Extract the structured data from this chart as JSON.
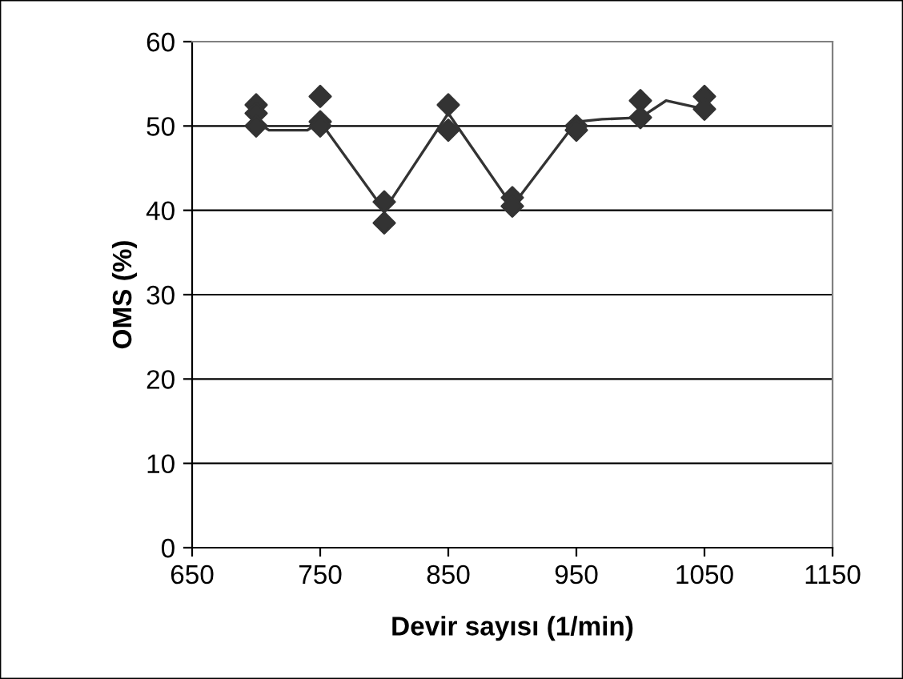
{
  "chart_data": {
    "type": "scatter",
    "xlabel": "Devir sayısı (1/min)",
    "ylabel": "OMS (%)",
    "xlim": [
      650,
      1150
    ],
    "xticks": [
      650,
      750,
      850,
      950,
      1050,
      1150
    ],
    "ylim": [
      0,
      60
    ],
    "yticks": [
      0,
      10,
      20,
      30,
      40,
      50,
      60
    ],
    "grid": "y",
    "legend": false,
    "series": [
      {
        "marker": "diamond",
        "color": "#333333",
        "x": [
          700,
          700,
          700,
          750,
          750,
          750,
          800,
          800,
          850,
          850,
          900,
          900,
          950,
          950,
          1000,
          1000,
          1050,
          1050
        ],
        "values": [
          52.5,
          51.5,
          50,
          53.5,
          50.5,
          50,
          41,
          38.5,
          52.5,
          49.5,
          41.5,
          40.5,
          50,
          49.5,
          53,
          51,
          53.5,
          52
        ]
      },
      {
        "type": "line",
        "marker": "none",
        "line_style": "solid",
        "color": "#333333",
        "x": [
          700,
          710,
          740,
          750,
          800,
          850,
          900,
          950,
          970,
          1000,
          1020,
          1050
        ],
        "values": [
          50.5,
          49.5,
          49.5,
          50.5,
          40,
          51.5,
          40.5,
          50.5,
          50.8,
          51,
          53,
          52
        ]
      }
    ]
  }
}
